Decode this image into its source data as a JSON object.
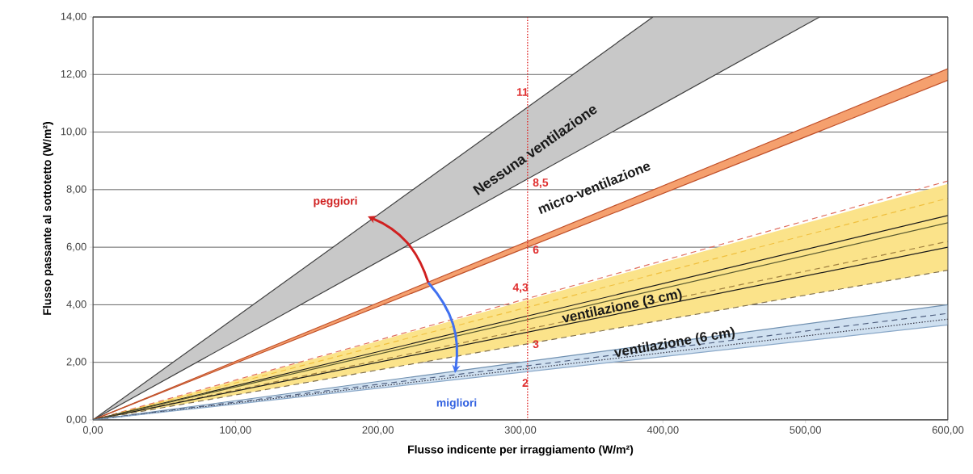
{
  "chart_data": {
    "type": "line",
    "xlabel": "Flusso indicente per irraggiamento  (W/m²)",
    "ylabel": "Flusso passante al sottotetto  (W/m²)",
    "xlim": [
      0,
      600
    ],
    "ylim": [
      0,
      14
    ],
    "xticks": [
      {
        "value": 0,
        "label": "0,00"
      },
      {
        "value": 100,
        "label": "100,00"
      },
      {
        "value": 200,
        "label": "200,00"
      },
      {
        "value": 300,
        "label": "300,00"
      },
      {
        "value": 400,
        "label": "400,00"
      },
      {
        "value": 500,
        "label": "500,00"
      },
      {
        "value": 600,
        "label": "600,00"
      }
    ],
    "yticks": [
      {
        "value": 0,
        "label": "0,00"
      },
      {
        "value": 2,
        "label": "2,00"
      },
      {
        "value": 4,
        "label": "4,00"
      },
      {
        "value": 6,
        "label": "6,00"
      },
      {
        "value": 8,
        "label": "8,00"
      },
      {
        "value": 10,
        "label": "10,00"
      },
      {
        "value": 12,
        "label": "12,00"
      },
      {
        "value": 14,
        "label": "14,00"
      }
    ],
    "grid": "y",
    "series": [
      {
        "color": "#c8c8c8",
        "x": [
          0,
          393,
          510
        ],
        "values": [
          null,
          null,
          null
        ],
        "lower": [
          0,
          10.79,
          14
        ],
        "upper": [
          0,
          14,
          14
        ]
      },
      {
        "color": "#404040",
        "x": [
          0,
          393
        ],
        "values": [
          0,
          14
        ]
      },
      {
        "color": "#404040",
        "x": [
          0,
          510
        ],
        "values": [
          0,
          14
        ]
      },
      {
        "color": "#f5a06e",
        "x": [
          0,
          600
        ],
        "values": [
          null,
          null
        ],
        "lower": [
          0,
          11.8
        ],
        "upper": [
          0,
          12.2
        ]
      },
      {
        "color": "#c0502a",
        "x": [
          0,
          600
        ],
        "values": [
          0,
          12.2
        ]
      },
      {
        "color": "#c0502a",
        "x": [
          0,
          600
        ],
        "values": [
          0,
          11.8
        ]
      },
      {
        "color": "#fbe38a",
        "x": [
          0,
          600
        ],
        "values": [
          null,
          null
        ],
        "lower": [
          0,
          5.2
        ],
        "upper": [
          0,
          8.2
        ]
      },
      {
        "color": "#cfe0f0",
        "x": [
          0,
          600
        ],
        "values": [
          null,
          null
        ],
        "lower": [
          0,
          3.3
        ],
        "upper": [
          0,
          4.0
        ]
      },
      {
        "color": "#e07060",
        "x": [
          0,
          600
        ],
        "values": [
          0,
          8.3
        ],
        "line_style": "dashed"
      },
      {
        "color": "#f0c040",
        "x": [
          0,
          600
        ],
        "values": [
          0,
          7.7
        ],
        "line_style": "dashed"
      },
      {
        "color": "#1a1a1a",
        "x": [
          0,
          600
        ],
        "values": [
          0,
          7.1
        ]
      },
      {
        "color": "#5a5a30",
        "x": [
          0,
          600
        ],
        "values": [
          0,
          6.85
        ]
      },
      {
        "color": "#a08040",
        "x": [
          0,
          600
        ],
        "values": [
          0,
          6.2
        ],
        "line_style": "dashed"
      },
      {
        "color": "#1a1a1a",
        "x": [
          0,
          600
        ],
        "values": [
          0,
          6.0
        ]
      },
      {
        "color": "#807050",
        "x": [
          0,
          600
        ],
        "values": [
          0,
          5.2
        ],
        "line_style": "dashed"
      },
      {
        "color": "#7090b0",
        "x": [
          0,
          600
        ],
        "values": [
          0,
          4.0
        ]
      },
      {
        "color": "#506080",
        "x": [
          0,
          600
        ],
        "values": [
          0,
          3.7
        ],
        "line_style": "dashed"
      },
      {
        "color": "#303040",
        "x": [
          0,
          600
        ],
        "values": [
          0,
          3.5
        ],
        "line_style": "dotted"
      },
      {
        "color": "#8aa8c8",
        "x": [
          0,
          600
        ],
        "values": [
          0,
          3.3
        ]
      }
    ],
    "ref_lines": [
      {
        "axis": "x",
        "value": 305,
        "color": "#e03030",
        "line_style": "dotted"
      }
    ],
    "annotations": [
      "Nessuna ventilazione",
      "micro-ventilazione",
      "ventilazione (3 cm)",
      "ventilazione (6 cm)",
      "peggiori",
      "migliori",
      "11",
      "8,5",
      "6",
      "4,3",
      "3",
      "2"
    ]
  }
}
